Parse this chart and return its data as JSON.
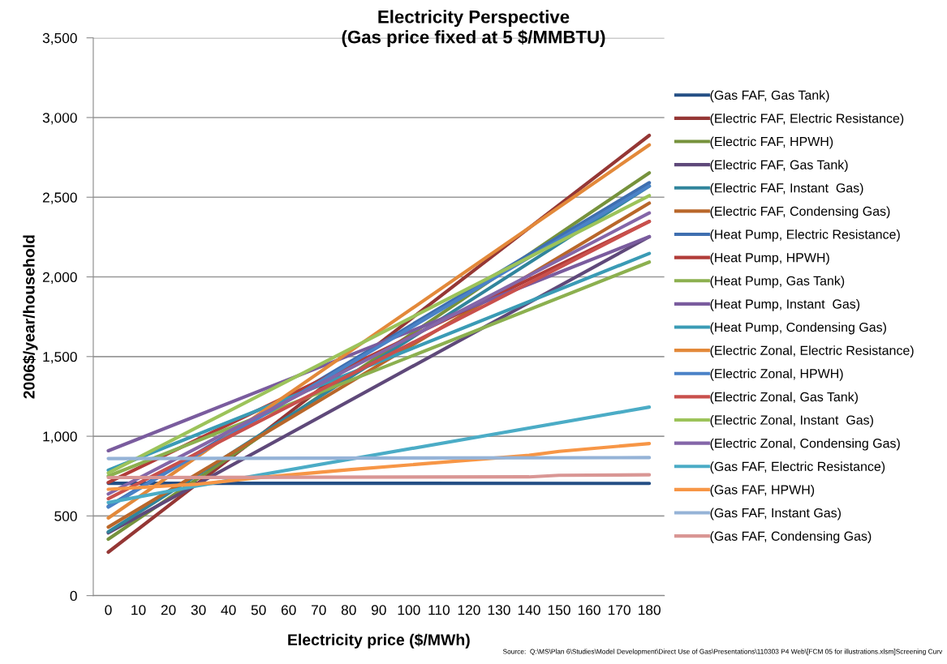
{
  "chart_data": {
    "type": "line",
    "title": "Electricity Perspective",
    "subtitle": "(Gas price fixed at 5 $/MMBTU)",
    "xlabel": "Electricity price ($/MWh)",
    "ylabel": "2006$/year/household",
    "annotations": [
      "Source:  Q:\\MS\\Plan 6\\Studies\\Model Development\\Direct Use of Gas\\Presentations\\110303 P4 Web\\[FCM 05 for illustrations.xlsm]Screening Curv"
    ],
    "xlim": [
      -5,
      185
    ],
    "xticks": [
      0,
      10,
      20,
      30,
      40,
      50,
      60,
      70,
      80,
      90,
      100,
      110,
      120,
      130,
      140,
      150,
      160,
      170,
      180
    ],
    "ylim": [
      0,
      3500
    ],
    "yticks": [
      {
        "value": 0,
        "label": "0"
      },
      {
        "value": 500,
        "label": "500"
      },
      {
        "value": 1000,
        "label": "1,000"
      },
      {
        "value": 1500,
        "label": "1,500"
      },
      {
        "value": 2000,
        "label": "2,000"
      },
      {
        "value": 2500,
        "label": "2,500"
      },
      {
        "value": 3000,
        "label": "3,000"
      },
      {
        "value": 3500,
        "label": "3,500"
      }
    ],
    "grid": "y",
    "legend": "right",
    "marker": "none",
    "line_style": "solid",
    "series": [
      {
        "name": "(Gas FAF, Gas Tank)",
        "color": "#254f85",
        "x": [
          0,
          180
        ],
        "values": [
          705,
          704
        ]
      },
      {
        "name": "(Electric FAF, Electric Resistance)",
        "color": "#953735",
        "x": [
          0,
          180
        ],
        "values": [
          273,
          2888
        ]
      },
      {
        "name": "(Electric FAF, HPWH)",
        "color": "#76923c",
        "x": [
          0,
          180
        ],
        "values": [
          354,
          2653
        ]
      },
      {
        "name": "(Electric FAF, Gas Tank)",
        "color": "#5f497a",
        "x": [
          0,
          180
        ],
        "values": [
          394,
          2252
        ]
      },
      {
        "name": "(Electric FAF, Instant  Gas)",
        "color": "#31859c",
        "x": [
          0,
          180
        ],
        "values": [
          400,
          2570
        ]
      },
      {
        "name": "(Electric FAF, Condensing Gas)",
        "color": "#b9672a",
        "x": [
          0,
          180
        ],
        "values": [
          430,
          2463
        ]
      },
      {
        "name": "(Heat Pump, Electric Resistance)",
        "color": "#3f6fb0",
        "x": [
          0,
          180
        ],
        "values": [
          560,
          2591
        ]
      },
      {
        "name": "(Heat Pump, HPWH)",
        "color": "#b13c38",
        "x": [
          0,
          180
        ],
        "values": [
          710,
          2348
        ]
      },
      {
        "name": "(Heat Pump, Gas Tank)",
        "color": "#8cb04f",
        "x": [
          0,
          180
        ],
        "values": [
          750,
          2093
        ]
      },
      {
        "name": "(Heat Pump, Instant  Gas)",
        "color": "#7a5c9e",
        "x": [
          0,
          180
        ],
        "values": [
          909,
          2252
        ]
      },
      {
        "name": "(Heat Pump, Condensing Gas)",
        "color": "#3a9bb5",
        "x": [
          0,
          180
        ],
        "values": [
          787,
          2147
        ]
      },
      {
        "name": "(Electric Zonal, Electric Resistance)",
        "color": "#e3893a",
        "x": [
          0,
          180
        ],
        "values": [
          487,
          2828
        ]
      },
      {
        "name": "(Electric Zonal, HPWH)",
        "color": "#4a82c7",
        "x": [
          0,
          180
        ],
        "values": [
          555,
          2570
        ]
      },
      {
        "name": "(Electric Zonal, Gas Tank)",
        "color": "#c9504c",
        "x": [
          0,
          180
        ],
        "values": [
          608,
          2348
        ]
      },
      {
        "name": "(Electric Zonal, Instant  Gas)",
        "color": "#9cc35a",
        "x": [
          0,
          180
        ],
        "values": [
          770,
          2510
        ]
      },
      {
        "name": "(Electric Zonal, Condensing Gas)",
        "color": "#8466a8",
        "x": [
          0,
          180
        ],
        "values": [
          638,
          2401
        ]
      },
      {
        "name": "(Gas FAF, Electric Resistance)",
        "color": "#4bacc6",
        "x": [
          0,
          30,
          180
        ],
        "values": [
          584,
          690,
          1183
        ]
      },
      {
        "name": "(Gas FAF, HPWH)",
        "color": "#f79646",
        "x": [
          0,
          30,
          50,
          80,
          100,
          140,
          150,
          180
        ],
        "values": [
          667,
          700,
          740,
          790,
          820,
          880,
          905,
          954
        ]
      },
      {
        "name": "(Gas FAF, Instant Gas)",
        "color": "#95b3d7",
        "x": [
          0,
          180
        ],
        "values": [
          860,
          866
        ]
      },
      {
        "name": "(Gas FAF, Condensing Gas)",
        "color": "#d99694",
        "x": [
          0,
          140,
          150,
          180
        ],
        "values": [
          741,
          745,
          755,
          758
        ]
      }
    ]
  }
}
